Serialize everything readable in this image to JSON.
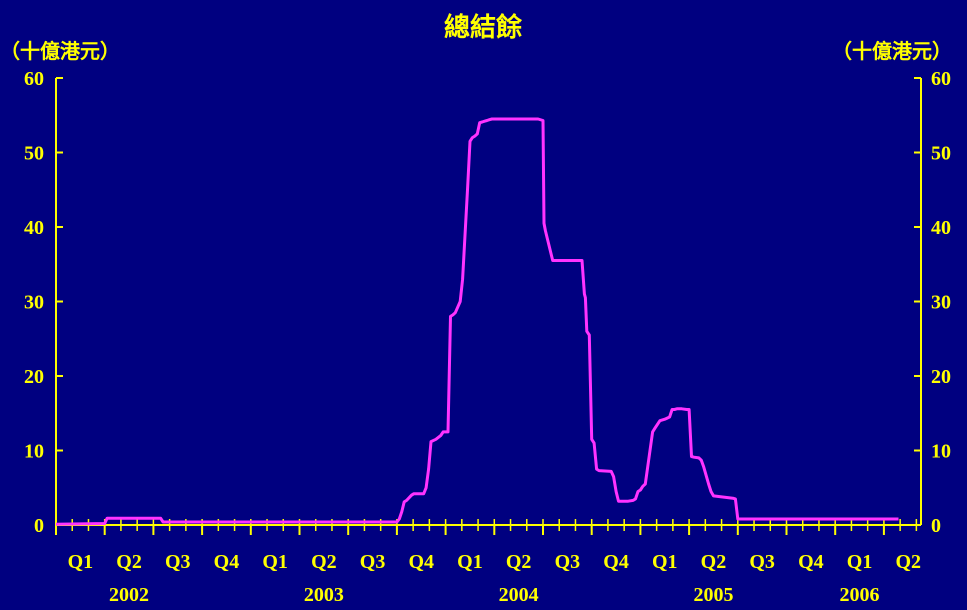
{
  "chart_data": {
    "type": "line",
    "title": "總結餘",
    "unit_left": "（十億港元）",
    "unit_right": "（十億港元）",
    "ylim": [
      0,
      60
    ],
    "yticks": [
      0,
      10,
      20,
      30,
      40,
      50,
      60
    ],
    "grid": false,
    "colors": {
      "background": "#000080",
      "axis": "#FFFF00",
      "text": "#FFFF00",
      "line": "#FF33FF"
    },
    "quarter_labels": [
      "Q1",
      "Q2",
      "Q3",
      "Q4",
      "Q1",
      "Q2",
      "Q3",
      "Q4",
      "Q1",
      "Q2",
      "Q3",
      "Q4",
      "Q1",
      "Q2",
      "Q3",
      "Q4",
      "Q1",
      "Q2"
    ],
    "year_labels": [
      {
        "label": "2002",
        "quarter_index": 1.5
      },
      {
        "label": "2003",
        "quarter_index": 5.5
      },
      {
        "label": "2004",
        "quarter_index": 9.5
      },
      {
        "label": "2005",
        "quarter_index": 13.5
      },
      {
        "label": "2006",
        "quarter_index": 16.5
      }
    ],
    "series": [
      {
        "x": [
          0.0,
          1.0,
          1.05,
          2.15,
          2.2,
          7.0,
          7.05,
          7.1,
          7.15,
          7.2,
          7.3,
          7.35,
          7.45,
          7.55,
          7.6,
          7.65,
          7.7,
          7.8,
          7.9,
          7.95,
          8.05,
          8.1,
          8.15,
          8.2,
          8.3,
          8.35,
          8.45,
          8.5,
          8.55,
          8.6,
          8.65,
          8.7,
          8.75,
          8.8,
          8.85,
          8.9,
          8.95,
          9.0,
          9.05,
          9.1,
          9.2,
          9.3,
          9.5,
          9.9,
          10.0,
          10.02,
          10.05,
          10.2,
          10.5,
          10.8,
          10.85,
          10.87,
          10.9,
          10.95,
          11.0,
          11.05,
          11.1,
          11.15,
          11.4,
          11.45,
          11.5,
          11.55,
          11.75,
          11.85,
          11.9,
          11.95,
          12.0,
          12.05,
          12.1,
          12.15,
          12.25,
          12.3,
          12.4,
          12.5,
          12.6,
          12.65,
          12.7,
          12.75,
          12.85,
          12.95,
          13.0,
          13.05,
          13.1,
          13.2,
          13.25,
          13.3,
          13.4,
          13.45,
          13.5,
          13.9,
          13.95,
          14.0,
          17.3
        ],
        "y": [
          0.1,
          0.2,
          0.9,
          0.9,
          0.4,
          0.4,
          0.8,
          1.8,
          3.1,
          3.3,
          4.0,
          4.2,
          4.2,
          4.2,
          5.0,
          7.5,
          11.2,
          11.5,
          12.0,
          12.5,
          12.5,
          28.0,
          28.2,
          28.5,
          30.0,
          33.0,
          45.0,
          51.5,
          52.0,
          52.2,
          52.5,
          54.0,
          54.1,
          54.2,
          54.3,
          54.4,
          54.5,
          54.5,
          54.5,
          54.5,
          54.5,
          54.5,
          54.5,
          54.5,
          54.3,
          40.5,
          39.5,
          35.5,
          35.5,
          35.5,
          31.0,
          30.5,
          26.0,
          25.5,
          11.5,
          11.0,
          7.5,
          7.3,
          7.2,
          6.5,
          4.5,
          3.2,
          3.2,
          3.3,
          3.5,
          4.5,
          4.7,
          5.2,
          5.5,
          7.8,
          12.5,
          13.0,
          14.0,
          14.2,
          14.5,
          15.5,
          15.5,
          15.6,
          15.6,
          15.5,
          15.5,
          9.2,
          9.1,
          9.0,
          8.7,
          7.8,
          5.5,
          4.5,
          3.9,
          3.6,
          3.5,
          0.8,
          0.8
        ]
      }
    ]
  }
}
